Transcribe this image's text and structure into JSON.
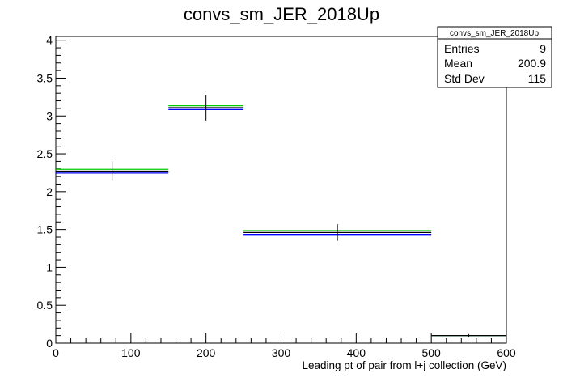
{
  "chart_data": {
    "type": "histogram",
    "title": "convs_sm_JER_2018Up",
    "xlabel": "Leading pt of pair from l+j collection (GeV)",
    "ylabel": "",
    "xlim": [
      0,
      600
    ],
    "ylim": [
      0,
      4.05
    ],
    "x_ticks": [
      0,
      100,
      200,
      300,
      400,
      500,
      600
    ],
    "x_tick_labels": [
      "0",
      "100",
      "200",
      "300",
      "400",
      "500",
      "600"
    ],
    "y_ticks": [
      0,
      0.5,
      1,
      1.5,
      2,
      2.5,
      3,
      3.5,
      4
    ],
    "y_tick_labels": [
      "0",
      "0.5",
      "1",
      "1.5",
      "2",
      "2.5",
      "3",
      "3.5",
      "4"
    ],
    "grid": false,
    "bins": [
      {
        "x_low": 0,
        "x_high": 150,
        "x_center": 75,
        "value": 2.27,
        "err": 0.13
      },
      {
        "x_low": 150,
        "x_high": 250,
        "x_center": 200,
        "value": 3.11,
        "err": 0.17
      },
      {
        "x_low": 250,
        "x_high": 500,
        "x_center": 375,
        "value": 1.46,
        "err": 0.11
      },
      {
        "x_low": 500,
        "x_high": 600,
        "x_center": 550,
        "value": 0.1,
        "err": 0.02
      }
    ],
    "series_colors": [
      "#000000",
      "#0000ff",
      "#00cc00"
    ],
    "series_offsets": [
      0,
      -0.025,
      0.025
    ],
    "stats_box": {
      "name": "convs_sm_JER_2018Up",
      "rows": [
        {
          "label": "Entries",
          "value": "9"
        },
        {
          "label": "Mean",
          "value": "200.9"
        },
        {
          "label": "Std Dev",
          "value": "115"
        }
      ],
      "placement": "top-right"
    }
  }
}
